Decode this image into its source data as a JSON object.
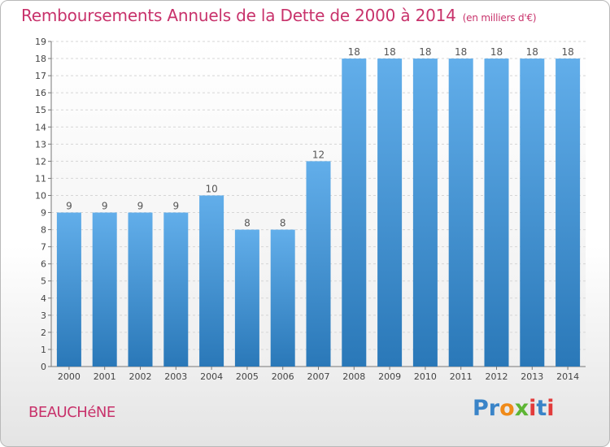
{
  "title": "Remboursements Annuels de la Dette de 2000 à 2014",
  "unit": "(en milliers d'€)",
  "commune": "BEAUCHéNE",
  "logo": {
    "text": "Proxiti",
    "letters": [
      {
        "ch": "P",
        "color": "#3a84c8"
      },
      {
        "ch": "r",
        "color": "#3a84c8"
      },
      {
        "ch": "o",
        "color": "#f08a18"
      },
      {
        "ch": "x",
        "color": "#5db534"
      },
      {
        "ch": "i",
        "color": "#e23b3b"
      },
      {
        "ch": "t",
        "color": "#3a84c8"
      },
      {
        "ch": "i",
        "color": "#e23b3b"
      }
    ]
  },
  "colors": {
    "accent": "#c8326b",
    "bar_top": "#62aeea",
    "bar_bottom": "#2a78b8"
  },
  "chart_data": {
    "type": "bar",
    "categories": [
      "2000",
      "2001",
      "2002",
      "2003",
      "2004",
      "2005",
      "2006",
      "2007",
      "2008",
      "2009",
      "2010",
      "2011",
      "2012",
      "2013",
      "2014"
    ],
    "values": [
      9,
      9,
      9,
      9,
      10,
      8,
      8,
      12,
      18,
      18,
      18,
      18,
      18,
      18,
      18
    ],
    "data_labels": [
      "9",
      "9",
      "9",
      "9",
      "10",
      "8",
      "8",
      "12",
      "18",
      "18",
      "18",
      "18",
      "18",
      "18",
      "18"
    ],
    "yticks": [
      "0",
      "1",
      "2",
      "3",
      "4",
      "5",
      "6",
      "7",
      "8",
      "9",
      "10",
      "11",
      "12",
      "13",
      "14",
      "15",
      "16",
      "17",
      "18",
      "19"
    ],
    "ylim": [
      0,
      19
    ],
    "grid": true,
    "legend": "none"
  }
}
